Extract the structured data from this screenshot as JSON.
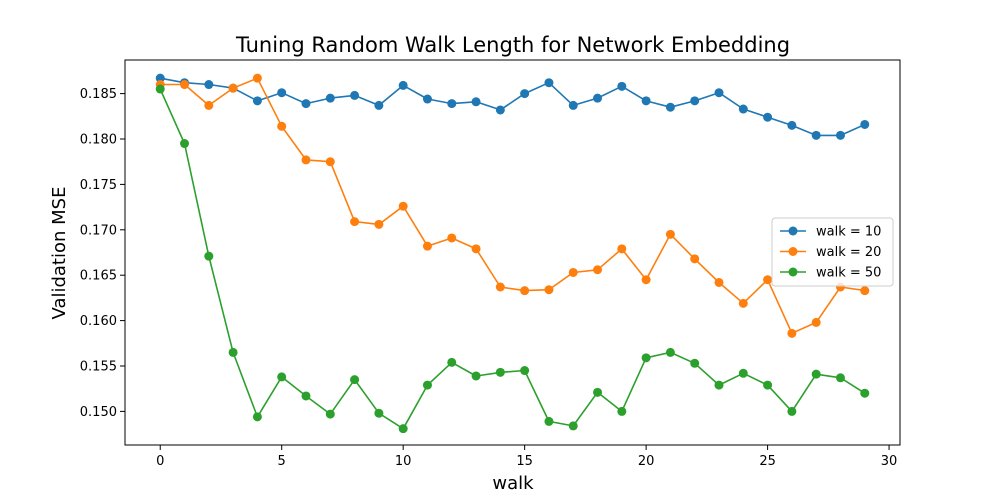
{
  "chart_data": {
    "type": "line",
    "title": "Tuning Random Walk Length for Network Embedding",
    "xlabel": "walk",
    "ylabel": "Validation MSE",
    "xlim": [
      -1.45,
      30.45
    ],
    "ylim": [
      0.1463,
      0.1887
    ],
    "xticks": [
      0,
      5,
      10,
      15,
      20,
      25,
      30
    ],
    "yticks": [
      0.15,
      0.155,
      0.16,
      0.165,
      0.17,
      0.175,
      0.18,
      0.185
    ],
    "ytick_labels": [
      "0.150",
      "0.155",
      "0.160",
      "0.165",
      "0.170",
      "0.175",
      "0.180",
      "0.185"
    ],
    "grid": false,
    "legend_position": "center-right",
    "x": [
      0,
      1,
      2,
      3,
      4,
      5,
      6,
      7,
      8,
      9,
      10,
      11,
      12,
      13,
      14,
      15,
      16,
      17,
      18,
      19,
      20,
      21,
      22,
      23,
      24,
      25,
      26,
      27,
      28,
      29
    ],
    "series": [
      {
        "name": "walk = 10",
        "color": "#1f77b4",
        "values": [
          0.1867,
          0.1862,
          0.186,
          0.1856,
          0.1842,
          0.1851,
          0.1839,
          0.1845,
          0.1848,
          0.1837,
          0.1859,
          0.1844,
          0.1839,
          0.1841,
          0.1832,
          0.185,
          0.1862,
          0.1837,
          0.1845,
          0.1858,
          0.1842,
          0.1835,
          0.1842,
          0.1851,
          0.1833,
          0.1824,
          0.1815,
          0.1804,
          0.1804,
          0.1816
        ]
      },
      {
        "name": "walk = 20",
        "color": "#ff7f0e",
        "values": [
          0.186,
          0.186,
          0.1837,
          0.1856,
          0.1867,
          0.1814,
          0.1777,
          0.1775,
          0.1709,
          0.1706,
          0.1726,
          0.1682,
          0.1691,
          0.1679,
          0.1637,
          0.1633,
          0.1634,
          0.1653,
          0.1656,
          0.1679,
          0.1645,
          0.1695,
          0.1668,
          0.1642,
          0.1619,
          0.1645,
          0.1586,
          0.1598,
          0.1637,
          0.1633
        ]
      },
      {
        "name": "walk = 50",
        "color": "#2ca02c",
        "values": [
          0.1855,
          0.1795,
          0.1671,
          0.1565,
          0.1494,
          0.1538,
          0.1517,
          0.1497,
          0.1535,
          0.1498,
          0.1481,
          0.1529,
          0.1554,
          0.1539,
          0.1543,
          0.1545,
          0.1489,
          0.1484,
          0.1521,
          0.15,
          0.1559,
          0.1565,
          0.1553,
          0.1529,
          0.1542,
          0.1529,
          0.15,
          0.1541,
          0.1537,
          0.152
        ]
      }
    ]
  }
}
